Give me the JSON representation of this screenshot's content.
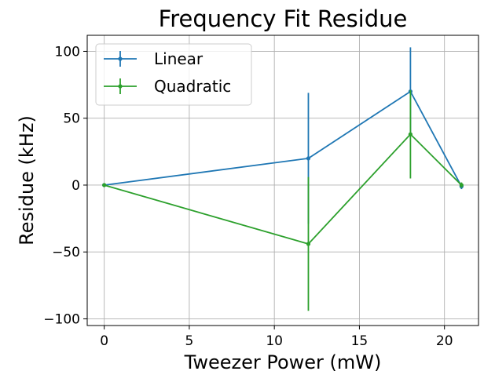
{
  "chart_data": {
    "type": "line",
    "title": "Frequency Fit Residue",
    "xlabel": "Tweezer Power (mW)",
    "ylabel": "Residue (kHz)",
    "xlim": [
      -1,
      22
    ],
    "ylim": [
      -105,
      112
    ],
    "xticks": [
      0,
      5,
      10,
      15,
      20
    ],
    "yticks": [
      -100,
      -50,
      0,
      50,
      100
    ],
    "xtick_labels": [
      "0",
      "5",
      "10",
      "15",
      "20"
    ],
    "ytick_labels": [
      "−100",
      "−50",
      "0",
      "50",
      "100"
    ],
    "grid": true,
    "legend_position": "upper-left",
    "series": [
      {
        "name": "Linear",
        "color": "#1f77b4",
        "x": [
          0,
          12,
          18,
          21
        ],
        "y": [
          0,
          20,
          70,
          -1
        ],
        "yerr": [
          0,
          49,
          33,
          2
        ]
      },
      {
        "name": "Quadratic",
        "color": "#2ca02c",
        "x": [
          0,
          12,
          18,
          21
        ],
        "y": [
          0,
          -44,
          38,
          0
        ],
        "yerr": [
          0,
          50,
          33,
          2
        ]
      }
    ]
  }
}
